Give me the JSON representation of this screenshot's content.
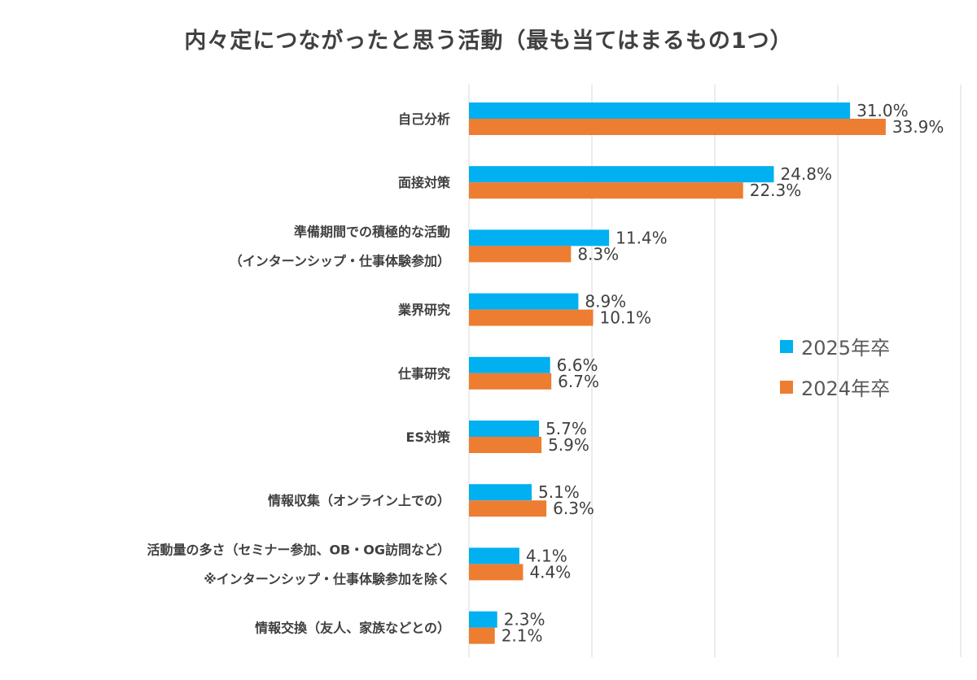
{
  "chart_data": {
    "type": "bar",
    "orientation": "horizontal",
    "title": "内々定につながったと思う活動（最も当てはまるもの1つ）",
    "categories": [
      [
        "自己分析"
      ],
      [
        "面接対策"
      ],
      [
        "準備期間での積極的な活動",
        "（インターンシップ・仕事体験参加）"
      ],
      [
        "業界研究"
      ],
      [
        "仕事研究"
      ],
      [
        "ES対策"
      ],
      [
        "情報収集（オンライン上での）"
      ],
      [
        "活動量の多さ（セミナー参加、OB・OG訪問など）",
        "※インターンシップ・仕事体験参加を除く"
      ],
      [
        "情報交換（友人、家族などとの）"
      ]
    ],
    "series": [
      {
        "name": "2025年卒",
        "color": "#00B0F0",
        "values": [
          31.0,
          24.8,
          11.4,
          8.9,
          6.6,
          5.7,
          5.1,
          4.1,
          2.3
        ],
        "labels": [
          "31.0%",
          "24.8%",
          "11.4%",
          "8.9%",
          "6.6%",
          "5.7%",
          "5.1%",
          "4.1%",
          "2.3%"
        ]
      },
      {
        "name": "2024年卒",
        "color": "#ED7D31",
        "values": [
          33.9,
          22.3,
          8.3,
          10.1,
          6.7,
          5.9,
          6.3,
          4.4,
          2.1
        ],
        "labels": [
          "33.9%",
          "22.3%",
          "8.3%",
          "10.1%",
          "6.7%",
          "5.9%",
          "6.3%",
          "4.4%",
          "2.1%"
        ]
      }
    ],
    "xlim": [
      0,
      40
    ],
    "grid": true,
    "legend": "right"
  }
}
